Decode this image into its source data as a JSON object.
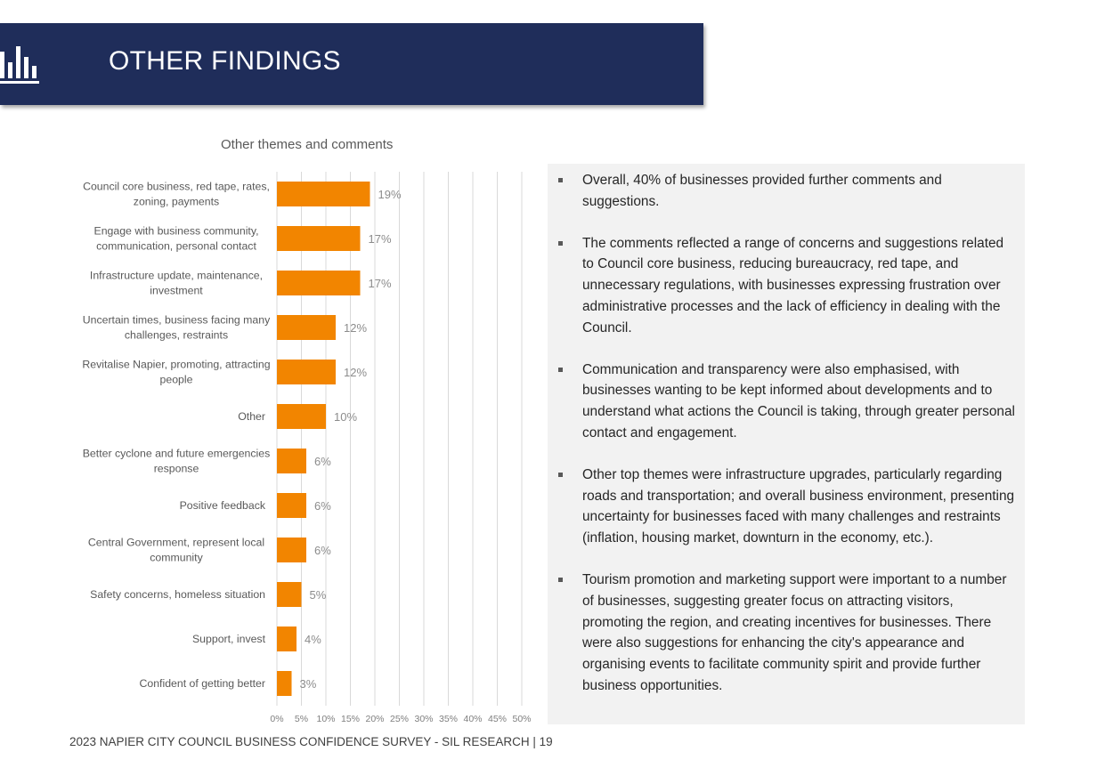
{
  "header": {
    "title": "OTHER FINDINGS",
    "icon": "bar-chart-icon",
    "background": "#1f2d5a"
  },
  "chart_data": {
    "type": "bar",
    "orientation": "horizontal",
    "title": "Other themes and comments",
    "categories": [
      [
        "Council core business, red tape, rates,",
        "zoning, payments"
      ],
      [
        "Engage with business community,",
        "communication, personal contact"
      ],
      [
        "Infrastructure update, maintenance,",
        "investment"
      ],
      [
        "Uncertain times, business facing many",
        "challenges, restraints"
      ],
      [
        "Revitalise Napier, promoting, attracting",
        "people"
      ],
      [
        "Other"
      ],
      [
        "Better cyclone and future emergencies",
        "response"
      ],
      [
        "Positive feedback"
      ],
      [
        "Central Government, represent local",
        "community"
      ],
      [
        "Safety concerns, homeless situation"
      ],
      [
        "Support, invest"
      ],
      [
        "Confident of getting better"
      ]
    ],
    "values": [
      19,
      17,
      17,
      12,
      12,
      10,
      6,
      6,
      6,
      5,
      4,
      3
    ],
    "value_labels": [
      "19%",
      "17%",
      "17%",
      "12%",
      "12%",
      "10%",
      "6%",
      "6%",
      "6%",
      "5%",
      "4%",
      "3%"
    ],
    "x_ticks": [
      "0%",
      "5%",
      "10%",
      "15%",
      "20%",
      "25%",
      "30%",
      "35%",
      "40%",
      "45%",
      "50%"
    ],
    "xlim": [
      0,
      50
    ],
    "grid": true,
    "bar_color": "#f28500"
  },
  "panel": {
    "bullets": [
      "Overall, 40% of businesses provided further comments and suggestions.",
      "The comments reflected a range of concerns and suggestions related to Council core business, reducing bureaucracy, red tape, and unnecessary regulations, with businesses expressing frustration over administrative processes and the lack of efficiency in dealing with the Council.",
      "Communication and transparency were also emphasised, with businesses wanting to be kept informed about developments and to understand what actions the Council is taking, through greater personal contact and engagement.",
      "Other top themes were infrastructure upgrades, particularly regarding roads and transportation; and overall business environment, presenting uncertainty for businesses faced with many challenges and restraints (inflation, housing market, downturn in the economy, etc.).",
      "Tourism promotion and marketing support were important to a number of businesses, suggesting greater focus on attracting visitors, promoting the region, and creating incentives for businesses. There were also suggestions for enhancing the city's appearance and organising events to facilitate community spirit and provide further business opportunities."
    ]
  },
  "footer": {
    "text": "2023 NAPIER CITY COUNCIL BUSINESS CONFIDENCE SURVEY - SIL RESEARCH | 19"
  }
}
